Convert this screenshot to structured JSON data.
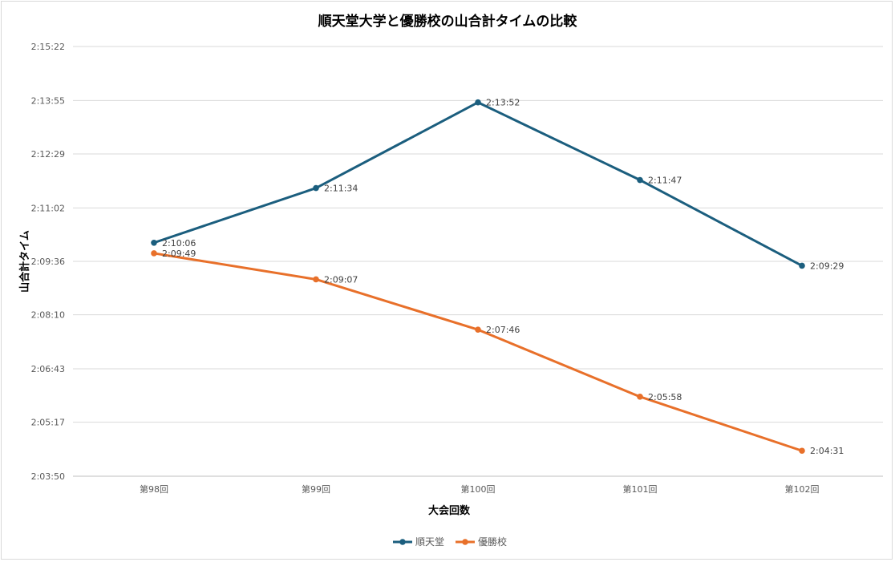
{
  "chart_data": {
    "type": "line",
    "title": "順天堂大学と優勝校の山合計タイムの比較",
    "xlabel": "大会回数",
    "ylabel": "山合計タイム",
    "categories": [
      "第98回",
      "第99回",
      "第100回",
      "第101回",
      "第102回"
    ],
    "yticks": [
      "2:03:50",
      "2:05:17",
      "2:06:43",
      "2:08:10",
      "2:09:36",
      "2:11:02",
      "2:12:29",
      "2:13:55",
      "2:15:22"
    ],
    "ylim": [
      "2:03:50",
      "2:15:22"
    ],
    "grid": true,
    "legend_position": "bottom",
    "series": [
      {
        "name": "順天堂",
        "color": "#1b5e7e",
        "values": [
          "2:10:06",
          "2:11:34",
          "2:13:52",
          "2:11:47",
          "2:09:29"
        ]
      },
      {
        "name": "優勝校",
        "color": "#e8702a",
        "values": [
          "2:09:49",
          "2:09:07",
          "2:07:46",
          "2:05:58",
          "2:04:31"
        ]
      }
    ]
  }
}
